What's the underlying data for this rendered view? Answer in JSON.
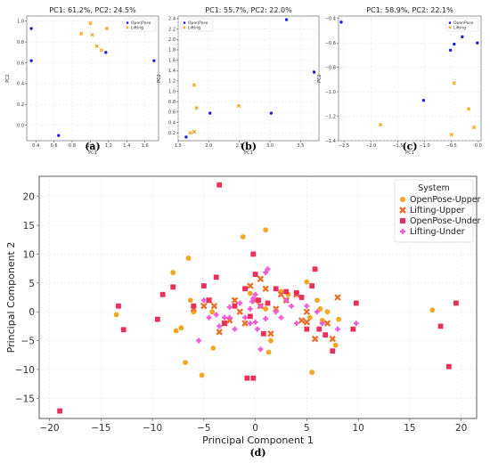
{
  "colors": {
    "openpose_small": "#1f1fd6",
    "lifting_small": "#f5a623",
    "openpose_upper": "#f5a623",
    "lifting_upper": "#e8702a",
    "openpose_under": "#e8305a",
    "lifting_under": "#f05ad6"
  },
  "chart_data": [
    {
      "panel_label": "(a)",
      "type": "scatter",
      "title": "PC1: 61.2%, PC2: 24.5%",
      "xlabel": "PC1",
      "ylabel": "PC2",
      "xlim": [
        0.3,
        1.75
      ],
      "ylim": [
        -0.15,
        1.05
      ],
      "xticks": [
        0.4,
        0.6,
        0.8,
        1.0,
        1.2,
        1.4,
        1.6
      ],
      "xticklabels": [
        "0.4",
        "0.6",
        "0.8",
        "1.0",
        "1.2",
        "1.4",
        "1.6"
      ],
      "yticks": [
        0.0,
        0.2,
        0.4,
        0.6,
        0.8,
        1.0
      ],
      "yticklabels": [
        "0.0",
        "0.2",
        "0.4",
        "0.6",
        "0.8",
        "1.0"
      ],
      "legend": {
        "position": "top-right",
        "entries": [
          "OpenPose",
          "Lifting"
        ]
      },
      "grid": true,
      "series": [
        {
          "name": "OpenPose",
          "marker": "dot",
          "color": "#1f1fd6",
          "points": [
            [
              0.35,
              0.93
            ],
            [
              0.35,
              0.62
            ],
            [
              0.65,
              -0.1
            ],
            [
              1.17,
              0.7
            ],
            [
              1.7,
              0.62
            ]
          ]
        },
        {
          "name": "Lifting",
          "marker": "x",
          "color": "#f5a623",
          "points": [
            [
              0.9,
              0.88
            ],
            [
              1.0,
              0.98
            ],
            [
              1.02,
              0.87
            ],
            [
              1.07,
              0.76
            ],
            [
              1.12,
              0.72
            ],
            [
              1.18,
              0.93
            ]
          ]
        }
      ]
    },
    {
      "panel_label": "(b)",
      "type": "scatter",
      "title": "PC1: 55.7%, PC2: 22.0%",
      "xlabel": "PC1",
      "ylabel": "PC2",
      "xlim": [
        1.5,
        3.8
      ],
      "ylim": [
        0.05,
        2.45
      ],
      "xticks": [
        1.5,
        2.0,
        2.5,
        3.0,
        3.5
      ],
      "xticklabels": [
        "1.5",
        "2.0",
        "2.5",
        "3.0",
        "3.5"
      ],
      "yticks": [
        0.2,
        0.4,
        0.6,
        0.8,
        1.0,
        1.2,
        1.4,
        1.6,
        1.8,
        2.0,
        2.2,
        2.4
      ],
      "yticklabels": [
        "0.2",
        "0.4",
        "0.6",
        "0.8",
        "1.0",
        "1.2",
        "1.4",
        "1.6",
        "1.8",
        "2.0",
        "2.2",
        "2.4"
      ],
      "legend": {
        "position": "top-left",
        "entries": [
          "OpenPose",
          "Lifting"
        ]
      },
      "grid": true,
      "series": [
        {
          "name": "OpenPose",
          "marker": "dot",
          "color": "#1f1fd6",
          "points": [
            [
              1.63,
              0.12
            ],
            [
              2.02,
              0.58
            ],
            [
              3.02,
              0.58
            ],
            [
              3.27,
              2.38
            ],
            [
              3.72,
              1.37
            ]
          ]
        },
        {
          "name": "Lifting",
          "marker": "x",
          "color": "#f5a623",
          "points": [
            [
              1.7,
              0.2
            ],
            [
              1.76,
              0.22
            ],
            [
              1.76,
              1.12
            ],
            [
              1.8,
              0.68
            ],
            [
              2.49,
              0.72
            ]
          ]
        }
      ]
    },
    {
      "panel_label": "(c)",
      "type": "scatter",
      "title": "PC1: 58.9%, PC2: 22.1%",
      "xlabel": "PC1",
      "ylabel": "PC2",
      "xlim": [
        -2.6,
        0.05
      ],
      "ylim": [
        -1.4,
        -0.38
      ],
      "xticks": [
        -2.5,
        -2.0,
        -1.5,
        -1.0,
        -0.5,
        0.0
      ],
      "xticklabels": [
        "−2.5",
        "−2.0",
        "−1.5",
        "−1.0",
        "−0.5",
        "0.0"
      ],
      "yticks": [
        -1.4,
        -1.2,
        -1.0,
        -0.8,
        -0.6,
        -0.4
      ],
      "yticklabels": [
        "−1.4",
        "−1.2",
        "−1.0",
        "−0.8",
        "−0.6",
        "−0.4"
      ],
      "legend": {
        "position": "top-right",
        "entries": [
          "OpenPose",
          "Lifting"
        ]
      },
      "grid": true,
      "series": [
        {
          "name": "OpenPose",
          "marker": "dot",
          "color": "#1f1fd6",
          "points": [
            [
              -2.55,
              -0.43
            ],
            [
              -1.02,
              -1.07
            ],
            [
              -0.52,
              -0.66
            ],
            [
              -0.45,
              -0.61
            ],
            [
              -0.3,
              -0.55
            ],
            [
              -0.02,
              -0.6
            ]
          ]
        },
        {
          "name": "Lifting",
          "marker": "x",
          "color": "#f5a623",
          "points": [
            [
              -1.82,
              -1.27
            ],
            [
              -0.5,
              -1.35
            ],
            [
              -0.45,
              -0.93
            ],
            [
              -0.18,
              -1.14
            ],
            [
              -0.08,
              -1.29
            ]
          ]
        }
      ]
    },
    {
      "panel_label": "(d)",
      "type": "scatter",
      "title": "",
      "xlabel": "Principal Component 1",
      "ylabel": "Principal Component 2",
      "xlim": [
        -21,
        21.5
      ],
      "ylim": [
        -18.5,
        23.5
      ],
      "xticks": [
        -20,
        -15,
        -10,
        -5,
        0,
        5,
        10,
        15,
        20
      ],
      "xticklabels": [
        "−20",
        "−15",
        "−10",
        "−5",
        "0",
        "5",
        "10",
        "15",
        "20"
      ],
      "yticks": [
        -15,
        -10,
        -5,
        0,
        5,
        10,
        15,
        20
      ],
      "yticklabels": [
        "−15",
        "−10",
        "−5",
        "0",
        "5",
        "10",
        "15",
        "20"
      ],
      "legend": {
        "position": "top-right",
        "title": "System",
        "entries": [
          "OpenPose-Upper",
          "Lifting-Upper",
          "OpenPose-Under",
          "Lifting-Under"
        ]
      },
      "grid": true,
      "series": [
        {
          "name": "OpenPose-Upper",
          "marker": "dot",
          "color": "#f5a623",
          "points": [
            [
              -13.5,
              -0.5
            ],
            [
              -8,
              6.8
            ],
            [
              -6.5,
              9.3
            ],
            [
              -6.3,
              2
            ],
            [
              -6,
              0
            ],
            [
              -7.7,
              -3.3
            ],
            [
              -7.2,
              -2.8
            ],
            [
              -6.8,
              -8.8
            ],
            [
              -5.2,
              -11
            ],
            [
              -4.1,
              -6.3
            ],
            [
              -4.2,
              0
            ],
            [
              -1.2,
              13
            ],
            [
              1,
              14.2
            ],
            [
              -0.5,
              3.2
            ],
            [
              0.5,
              1
            ],
            [
              1,
              0.5
            ],
            [
              1.5,
              -5
            ],
            [
              1.3,
              -7
            ],
            [
              2.5,
              3.5
            ],
            [
              3.2,
              3
            ],
            [
              4.5,
              2.5
            ],
            [
              5,
              5.2
            ],
            [
              5.3,
              -1
            ],
            [
              6,
              2
            ],
            [
              6.3,
              0.5
            ],
            [
              6.5,
              -1.5
            ],
            [
              7,
              0
            ],
            [
              5.5,
              -10.5
            ],
            [
              7.8,
              -5.8
            ],
            [
              8.1,
              -1.3
            ],
            [
              17.2,
              0.3
            ]
          ]
        },
        {
          "name": "Lifting-Upper",
          "marker": "x",
          "color": "#e8702a",
          "points": [
            [
              -6,
              0.5
            ],
            [
              -5,
              1
            ],
            [
              -4.5,
              2
            ],
            [
              -4,
              1
            ],
            [
              -3.5,
              -3.5
            ],
            [
              -3,
              -2
            ],
            [
              -2.5,
              -1.5
            ],
            [
              -2,
              2
            ],
            [
              -1.5,
              0
            ],
            [
              -1,
              -2
            ],
            [
              -0.5,
              4.5
            ],
            [
              0,
              2
            ],
            [
              0.5,
              1
            ],
            [
              0.5,
              5.7
            ],
            [
              1,
              4
            ],
            [
              1.5,
              -3.8
            ],
            [
              2,
              0.5
            ],
            [
              2.5,
              3
            ],
            [
              3,
              2
            ],
            [
              4,
              3
            ],
            [
              4.5,
              -1.5
            ],
            [
              5,
              0
            ],
            [
              5,
              -1.8
            ],
            [
              5.8,
              -4.7
            ],
            [
              7,
              -2
            ],
            [
              7.5,
              -4.7
            ],
            [
              8,
              2.5
            ]
          ]
        },
        {
          "name": "OpenPose-Under",
          "marker": "square",
          "color": "#e8305a",
          "points": [
            [
              -19,
              -17.2
            ],
            [
              -13.3,
              1
            ],
            [
              -12.8,
              -3.1
            ],
            [
              -9.5,
              -1.3
            ],
            [
              -9,
              3
            ],
            [
              -8,
              4.3
            ],
            [
              -6,
              1
            ],
            [
              -5,
              4.5
            ],
            [
              -4.5,
              2
            ],
            [
              -3.8,
              6
            ],
            [
              -3.5,
              22
            ],
            [
              -3,
              -2
            ],
            [
              -2,
              1
            ],
            [
              -1,
              4
            ],
            [
              -0.5,
              -0.8
            ],
            [
              -0.2,
              10
            ],
            [
              -0.2,
              -11.5
            ],
            [
              -0.8,
              -11.5
            ],
            [
              0,
              6.5
            ],
            [
              0.3,
              2
            ],
            [
              0.8,
              -3.8
            ],
            [
              1.2,
              1.5
            ],
            [
              2,
              4
            ],
            [
              3,
              3.5
            ],
            [
              4,
              3.3
            ],
            [
              4.5,
              2.5
            ],
            [
              5,
              -3
            ],
            [
              5.5,
              4.5
            ],
            [
              5.8,
              7.4
            ],
            [
              6.2,
              -3
            ],
            [
              6.8,
              -4
            ],
            [
              7.5,
              -6.8
            ],
            [
              9.5,
              -3
            ],
            [
              9.8,
              1.5
            ],
            [
              18,
              -2.5
            ],
            [
              18.8,
              -9.5
            ],
            [
              19.5,
              1.5
            ]
          ]
        },
        {
          "name": "Lifting-Under",
          "marker": "plus",
          "color": "#f05ad6",
          "points": [
            [
              -5.5,
              -5
            ],
            [
              -5,
              2
            ],
            [
              -4.5,
              -1
            ],
            [
              -3.8,
              -0.5
            ],
            [
              -3.5,
              -2.5
            ],
            [
              -3,
              -1
            ],
            [
              -2.5,
              0.8
            ],
            [
              -2.5,
              -1
            ],
            [
              -2,
              -3
            ],
            [
              -1.5,
              1.5
            ],
            [
              -1,
              -1
            ],
            [
              -0.5,
              0.5
            ],
            [
              -0.5,
              -2
            ],
            [
              -0.3,
              1.8
            ],
            [
              -0.2,
              2.3
            ],
            [
              0,
              -1.8
            ],
            [
              0,
              3
            ],
            [
              0.2,
              -3
            ],
            [
              0.5,
              1
            ],
            [
              0.5,
              -6.5
            ],
            [
              1,
              -1.2
            ],
            [
              1,
              6.8
            ],
            [
              1.2,
              7.4
            ],
            [
              2,
              0
            ],
            [
              2.5,
              -1
            ],
            [
              3,
              2
            ],
            [
              3.5,
              1
            ],
            [
              4,
              -2
            ],
            [
              5,
              1
            ],
            [
              6,
              0
            ],
            [
              6.5,
              -2
            ],
            [
              8,
              -3
            ],
            [
              9.8,
              -2
            ]
          ]
        }
      ]
    }
  ]
}
